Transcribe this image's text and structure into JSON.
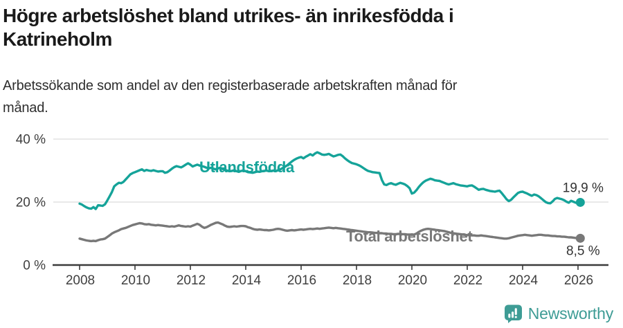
{
  "header": {
    "title_lines": [
      "Högre arbetslöshet bland utrikes- än inrikesfödda i",
      "Katrineholm"
    ],
    "subtitle_lines": [
      "Arbetssökande som andel av den registerbaserade arbetskraften månad för",
      "månad."
    ]
  },
  "footer": {
    "brand": "Newsworthy",
    "brand_color": "#3e9c95"
  },
  "colors": {
    "teal": "#15a399",
    "gray": "#787878",
    "gridline": "#dcdcdc",
    "axis": "#3a3a3a",
    "axis_text": "#3f3f3f",
    "annotation_text": "#333333"
  },
  "chart_data": {
    "type": "line",
    "title": "Högre arbetslöshet bland utrikes- än inrikesfödda i Katrineholm",
    "subtitle": "Arbetssökande som andel av den registerbaserade arbetskraften månad för månad.",
    "x_start_year": 2008,
    "points_per_year": 12,
    "xlim": [
      2008,
      2026.17
    ],
    "ylim": [
      0,
      40
    ],
    "y_ticks": [
      {
        "value": 0,
        "label": "0 %"
      },
      {
        "value": 20,
        "label": "20 %"
      },
      {
        "value": 40,
        "label": "40 %"
      }
    ],
    "x_ticks": [
      "2008",
      "2010",
      "2012",
      "2014",
      "2016",
      "2018",
      "2020",
      "2022",
      "2024",
      "2026"
    ],
    "grid": "horizontal",
    "legend_position": "inline-labels",
    "series": [
      {
        "name": "Utlandsfödda",
        "color": "#15a399",
        "end_label": "19,9 %",
        "end_value": 19.9,
        "values": [
          19.5,
          19.2,
          18.7,
          18.3,
          18.0,
          17.9,
          18.4,
          17.8,
          19.0,
          18.9,
          18.8,
          19.3,
          20.5,
          21.8,
          23.2,
          25.0,
          25.6,
          26.1,
          26.0,
          26.4,
          27.2,
          28.0,
          28.8,
          29.2,
          29.5,
          29.8,
          30.1,
          30.4,
          29.9,
          30.2,
          30.0,
          29.9,
          30.1,
          29.9,
          29.7,
          29.8,
          29.8,
          29.3,
          29.5,
          30.0,
          30.6,
          31.1,
          31.4,
          31.2,
          31.0,
          31.4,
          31.9,
          32.3,
          31.9,
          31.3,
          31.6,
          31.9,
          31.6,
          31.4,
          31.2,
          30.9,
          30.7,
          30.9,
          30.6,
          30.4,
          30.7,
          30.9,
          30.5,
          30.2,
          30.0,
          29.8,
          29.9,
          30.1,
          29.8,
          29.6,
          29.9,
          30.0,
          29.8,
          29.5,
          29.4,
          29.3,
          29.5,
          29.7,
          29.6,
          29.8,
          29.9,
          30.0,
          29.8,
          29.9,
          30.0,
          29.8,
          30.1,
          30.4,
          30.8,
          31.2,
          31.7,
          32.3,
          32.9,
          33.4,
          33.8,
          34.1,
          34.3,
          33.9,
          34.4,
          34.8,
          35.2,
          34.8,
          35.4,
          35.8,
          35.5,
          35.1,
          35.0,
          35.1,
          35.3,
          34.9,
          34.5,
          34.7,
          35.0,
          35.1,
          34.6,
          33.9,
          33.3,
          32.8,
          32.4,
          32.2,
          32.0,
          31.7,
          31.3,
          30.8,
          30.3,
          29.9,
          29.7,
          29.5,
          29.4,
          29.3,
          29.2,
          27.0,
          25.6,
          25.4,
          25.8,
          26.0,
          25.7,
          25.5,
          25.8,
          26.1,
          25.9,
          25.6,
          25.1,
          24.4,
          22.7,
          23.0,
          23.8,
          24.8,
          25.6,
          26.3,
          26.8,
          27.1,
          27.4,
          27.2,
          26.9,
          26.8,
          26.7,
          26.4,
          26.1,
          25.8,
          25.6,
          25.8,
          26.0,
          25.7,
          25.5,
          25.3,
          25.2,
          25.1,
          25.0,
          25.2,
          25.3,
          24.9,
          24.4,
          23.9,
          24.1,
          24.2,
          23.9,
          23.7,
          23.5,
          23.4,
          23.3,
          23.5,
          23.6,
          22.8,
          21.9,
          20.9,
          20.3,
          20.7,
          21.5,
          22.2,
          22.9,
          23.2,
          23.3,
          23.0,
          22.7,
          22.3,
          22.0,
          22.4,
          22.2,
          21.8,
          21.2,
          20.6,
          20.0,
          19.7,
          19.6,
          20.2,
          21.0,
          21.3,
          21.1,
          20.9,
          20.6,
          20.1,
          19.8,
          20.4,
          20.1,
          19.8,
          19.8,
          19.9
        ]
      },
      {
        "name": "Total arbetslöshet",
        "color": "#787878",
        "end_label": "8,5 %",
        "end_value": 8.5,
        "values": [
          8.4,
          8.2,
          8.0,
          7.8,
          7.7,
          7.6,
          7.7,
          7.6,
          7.9,
          8.1,
          8.2,
          8.4,
          8.9,
          9.4,
          10.0,
          10.4,
          10.7,
          11.0,
          11.4,
          11.6,
          11.8,
          12.1,
          12.4,
          12.7,
          12.9,
          13.1,
          13.3,
          13.2,
          13.0,
          12.9,
          13.0,
          12.8,
          12.7,
          12.6,
          12.7,
          12.6,
          12.5,
          12.4,
          12.3,
          12.2,
          12.3,
          12.2,
          12.4,
          12.6,
          12.4,
          12.3,
          12.2,
          12.3,
          12.2,
          12.5,
          12.8,
          13.1,
          12.8,
          12.2,
          11.8,
          12.0,
          12.4,
          12.8,
          13.1,
          13.4,
          13.5,
          13.2,
          12.9,
          12.5,
          12.2,
          12.1,
          12.2,
          12.3,
          12.2,
          12.3,
          12.4,
          12.4,
          12.3,
          12.0,
          11.8,
          11.5,
          11.3,
          11.2,
          11.3,
          11.2,
          11.1,
          11.1,
          11.0,
          11.1,
          11.2,
          11.4,
          11.5,
          11.4,
          11.2,
          11.0,
          10.9,
          11.0,
          11.1,
          11.0,
          11.1,
          11.2,
          11.3,
          11.2,
          11.3,
          11.4,
          11.5,
          11.4,
          11.5,
          11.6,
          11.5,
          11.6,
          11.7,
          11.8,
          11.9,
          11.8,
          11.7,
          11.8,
          11.7,
          11.6,
          11.5,
          11.4,
          11.3,
          11.2,
          11.1,
          11.0,
          10.9,
          10.8,
          10.7,
          10.6,
          10.5,
          10.4,
          10.4,
          10.3,
          10.2,
          10.2,
          10.1,
          10.1,
          10.0,
          10.0,
          9.9,
          9.9,
          9.8,
          9.8,
          9.9,
          9.9,
          9.8,
          9.8,
          9.7,
          9.7,
          9.6,
          9.7,
          10.0,
          10.5,
          10.9,
          11.2,
          11.4,
          11.5,
          11.4,
          11.3,
          11.2,
          11.1,
          11.0,
          10.9,
          10.8,
          10.6,
          10.4,
          10.2,
          10.1,
          10.0,
          9.9,
          9.8,
          9.7,
          9.6,
          9.5,
          9.5,
          9.4,
          9.4,
          9.3,
          9.3,
          9.4,
          9.3,
          9.2,
          9.1,
          9.0,
          8.9,
          8.8,
          8.7,
          8.6,
          8.5,
          8.4,
          8.4,
          8.5,
          8.7,
          8.9,
          9.1,
          9.3,
          9.4,
          9.5,
          9.6,
          9.5,
          9.4,
          9.3,
          9.4,
          9.5,
          9.6,
          9.6,
          9.5,
          9.4,
          9.4,
          9.3,
          9.2,
          9.2,
          9.1,
          9.1,
          9.0,
          9.0,
          8.9,
          8.8,
          8.8,
          8.7,
          8.6,
          8.5,
          8.5
        ]
      }
    ]
  }
}
